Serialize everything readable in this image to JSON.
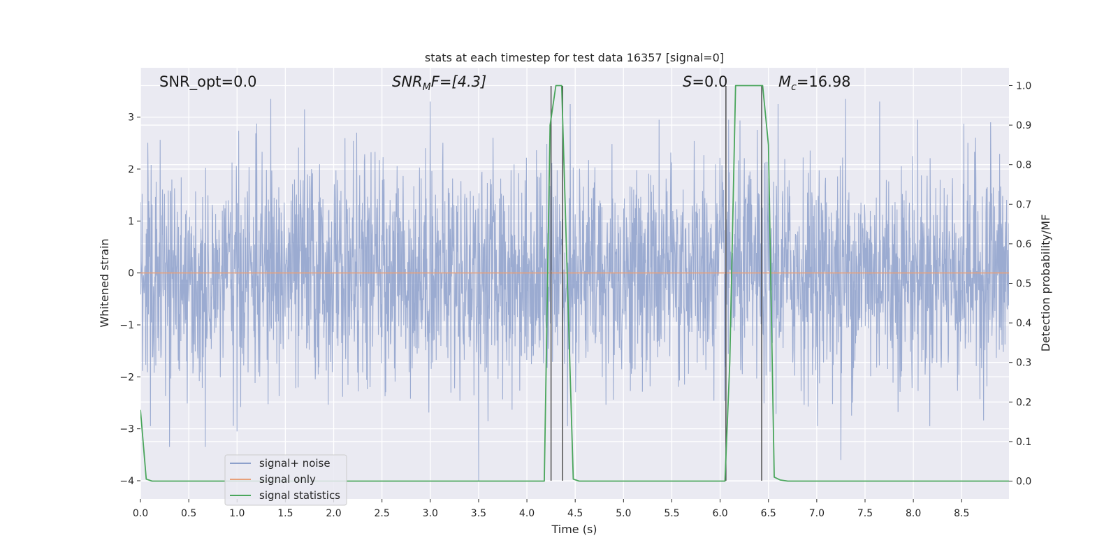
{
  "chart_data": {
    "type": "line",
    "title": "stats at each timestep for test data 16357 [signal=0]",
    "xlabel": "Time (s)",
    "ylabel": "Whitened strain",
    "y2label": "Detection probability/MF",
    "xlim": [
      0.0,
      8.99
    ],
    "ylim": [
      -4.35,
      3.95
    ],
    "y2lim": [
      -0.045,
      1.045
    ],
    "xticks": [
      0.0,
      0.5,
      1.0,
      1.5,
      2.0,
      2.5,
      3.0,
      3.5,
      4.0,
      4.5,
      5.0,
      5.5,
      6.0,
      6.5,
      7.0,
      7.5,
      8.0,
      8.5
    ],
    "xtick_labels": [
      "0.0",
      "0.5",
      "1.0",
      "1.5",
      "2.0",
      "2.5",
      "3.0",
      "3.5",
      "4.0",
      "4.5",
      "5.0",
      "5.5",
      "6.0",
      "6.5",
      "7.0",
      "7.5",
      "8.0",
      "8.5"
    ],
    "yticks": [
      3,
      2,
      1,
      0,
      -1,
      -2,
      -3,
      -4
    ],
    "ytick_labels": [
      "3",
      "2",
      "1",
      "0",
      "−1",
      "−2",
      "−3",
      "−4"
    ],
    "y2ticks": [
      1.0,
      0.9,
      0.8,
      0.7,
      0.6,
      0.5,
      0.4,
      0.3,
      0.2,
      0.1,
      0.0
    ],
    "y2tick_labels": [
      "1.0",
      "0.9",
      "0.8",
      "0.7",
      "0.6",
      "0.5",
      "0.4",
      "0.3",
      "0.2",
      "0.1",
      "0.0"
    ],
    "grid": true,
    "legend_position": "bottom-left",
    "annotations": {
      "snr_opt": "SNR_opt=0.0",
      "snr_mf_sym": "SNR",
      "snr_mf_sub": "M",
      "snr_mf_rest": "F=[4.3]",
      "s_sym": "S",
      "s_rest": "=0.0",
      "mc_sym": "M",
      "mc_sub": "c",
      "mc_rest": "=16.98"
    },
    "series": [
      {
        "name": "signal+ noise",
        "color": "#8da0cb",
        "description_kind": "noise",
        "amplitude_std": 1.05,
        "notable_peaks": [
          {
            "x": 0.3,
            "y": -3.35
          },
          {
            "x": 0.67,
            "y": -3.35
          },
          {
            "x": 1.0,
            "y": -3.05
          },
          {
            "x": 1.35,
            "y": 3.35
          },
          {
            "x": 1.7,
            "y": 3.15
          },
          {
            "x": 3.0,
            "y": 3.3
          },
          {
            "x": 3.5,
            "y": -4.0
          },
          {
            "x": 4.45,
            "y": 3.25
          },
          {
            "x": 6.6,
            "y": 3.25
          },
          {
            "x": 7.3,
            "y": 3.35
          },
          {
            "x": 7.65,
            "y": 3.3
          },
          {
            "x": 7.25,
            "y": -3.6
          },
          {
            "x": 8.8,
            "y": 2.9
          }
        ]
      },
      {
        "name": "signal only",
        "color": "#e8a07a",
        "x": [
          0.0,
          8.99
        ],
        "y": [
          0.0,
          0.0
        ]
      },
      {
        "name": "signal statistics",
        "color": "#4aa65c",
        "axis": "right",
        "x": [
          0.0,
          0.06,
          0.12,
          4.18,
          4.24,
          4.3,
          4.36,
          4.42,
          4.48,
          4.54,
          6.05,
          6.1,
          6.16,
          6.44,
          6.5,
          6.56,
          6.62,
          6.7,
          8.99
        ],
        "y": [
          0.18,
          0.005,
          0.0,
          0.0,
          0.9,
          1.0,
          1.0,
          0.5,
          0.005,
          0.0,
          0.0,
          0.3,
          1.0,
          1.0,
          0.85,
          0.01,
          0.003,
          0.0,
          0.0
        ]
      }
    ],
    "markers": {
      "color": "#444444",
      "x": [
        4.25,
        4.37,
        6.06,
        6.43
      ],
      "y_range": [
        -4.0,
        3.6
      ]
    }
  }
}
